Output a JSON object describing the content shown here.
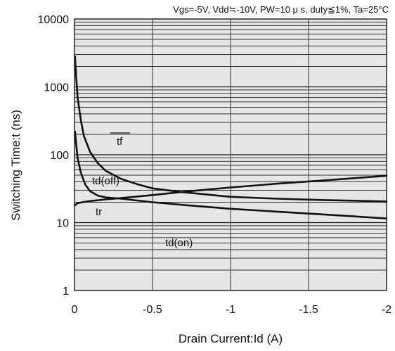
{
  "chart_data": {
    "type": "line",
    "title": "",
    "conditions": "Vgs=-5V, Vdd≒-10V, PW=10 μ s, duty≦1%, Ta=25°C",
    "xlabel": "Drain Current:Id  (A)",
    "ylabel": "Switching Time:t  (ns)",
    "x_scale": "linear",
    "y_scale": "log",
    "xlim": [
      0,
      -2
    ],
    "ylim": [
      1,
      10000
    ],
    "x_ticks": [
      0,
      -0.5,
      -1,
      -1.5,
      -2
    ],
    "x_tick_labels": [
      "0",
      "-0.5",
      "-1",
      "-1.5",
      "-2"
    ],
    "y_ticks": [
      1,
      10,
      100,
      1000,
      10000
    ],
    "y_tick_labels": [
      "1",
      "10",
      "100",
      "1000",
      "10000"
    ],
    "grid": true,
    "background": "#e6e6e6",
    "series": [
      {
        "name": "tf",
        "x": [
          -0.003,
          -0.01,
          -0.02,
          -0.04,
          -0.06,
          -0.1,
          -0.15,
          -0.2,
          -0.3,
          -0.4,
          -0.5,
          -0.7,
          -1.0,
          -1.3,
          -1.6,
          -2.0
        ],
        "y": [
          2800,
          1500,
          700,
          330,
          190,
          110,
          75,
          58,
          44,
          37,
          32,
          28,
          24,
          22.5,
          21.5,
          20.5
        ]
      },
      {
        "name": "td(off)",
        "x": [
          -0.003,
          -0.01,
          -0.02,
          -0.04,
          -0.07,
          -0.1,
          -0.15,
          -0.2,
          -0.3,
          -0.5,
          -0.7,
          -1.0,
          -1.3,
          -1.6,
          -2.0
        ],
        "y": [
          220,
          150,
          90,
          55,
          36,
          29,
          25,
          23.5,
          22.5,
          20,
          18.2,
          16,
          14.5,
          13.2,
          11.5
        ]
      },
      {
        "name": "tr",
        "x": [
          -0.003,
          -0.02,
          -0.05,
          -0.1,
          -0.2,
          -0.3,
          -0.5,
          -0.7,
          -1.0,
          -1.3,
          -1.6,
          -2.0
        ],
        "y": [
          18,
          19.3,
          20,
          20.8,
          22,
          23,
          25.5,
          28.5,
          33,
          37.5,
          42,
          49
        ]
      },
      {
        "name": "td(on)",
        "x": [],
        "y": []
      }
    ],
    "labels": [
      "tf",
      "td(off)",
      "tr",
      "td(on)"
    ]
  }
}
